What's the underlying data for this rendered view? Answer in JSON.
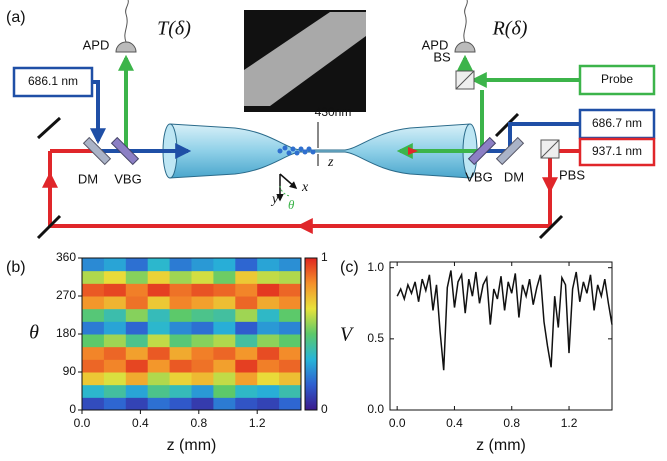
{
  "diagram": {
    "label": "(a)",
    "apd_left": "APD",
    "transmission": "T(δ)",
    "apd_right": "APD",
    "reflection": "R(δ)",
    "laser_left": "686.1 nm",
    "probe": "Probe",
    "laser_right_blue": "686.7 nm",
    "laser_right_red": "937.1 nm",
    "bs": "BS",
    "dm_left": "DM",
    "vbg_left": "VBG",
    "vbg_right": "VBG",
    "dm_right": "DM",
    "pbs": "PBS",
    "diameter": "430nm",
    "axis_z": "z",
    "axis_y": "y",
    "axis_x": "x",
    "axis_theta": "θ"
  },
  "chart_data": [
    {
      "type": "heatmap",
      "label": "(b)",
      "ylabel": "θ",
      "xlabel": "z (mm)",
      "xbins": [
        0,
        0.15,
        0.3,
        0.45,
        0.6,
        0.75,
        0.9,
        1.05,
        1.2,
        1.35,
        1.5
      ],
      "ybins": [
        0,
        30,
        60,
        90,
        120,
        150,
        180,
        210,
        240,
        270,
        300,
        330,
        360
      ],
      "values": [
        [
          0.12,
          0.18,
          0.1,
          0.2,
          0.15,
          0.08,
          0.22,
          0.14,
          0.1,
          0.18
        ],
        [
          0.35,
          0.42,
          0.3,
          0.45,
          0.38,
          0.28,
          0.5,
          0.36,
          0.32,
          0.4
        ],
        [
          0.72,
          0.65,
          0.78,
          0.6,
          0.7,
          0.75,
          0.62,
          0.8,
          0.68,
          0.74
        ],
        [
          0.9,
          0.85,
          0.95,
          0.82,
          0.92,
          0.88,
          0.8,
          0.96,
          0.86,
          0.9
        ],
        [
          0.85,
          0.9,
          0.8,
          0.92,
          0.78,
          0.86,
          0.9,
          0.82,
          0.94,
          0.84
        ],
        [
          0.5,
          0.58,
          0.45,
          0.62,
          0.48,
          0.55,
          0.6,
          0.42,
          0.56,
          0.5
        ],
        [
          0.22,
          0.3,
          0.18,
          0.35,
          0.25,
          0.2,
          0.32,
          0.16,
          0.28,
          0.24
        ],
        [
          0.48,
          0.4,
          0.55,
          0.38,
          0.5,
          0.45,
          0.42,
          0.58,
          0.36,
          0.5
        ],
        [
          0.82,
          0.76,
          0.88,
          0.72,
          0.85,
          0.8,
          0.74,
          0.9,
          0.78,
          0.84
        ],
        [
          0.92,
          0.95,
          0.86,
          0.96,
          0.88,
          0.93,
          0.9,
          0.85,
          0.97,
          0.9
        ],
        [
          0.6,
          0.68,
          0.55,
          0.7,
          0.58,
          0.64,
          0.52,
          0.72,
          0.62,
          0.6
        ],
        [
          0.25,
          0.3,
          0.2,
          0.35,
          0.22,
          0.28,
          0.32,
          0.18,
          0.3,
          0.26
        ]
      ],
      "xlim": [
        0,
        1.5
      ],
      "ylim": [
        0,
        360
      ],
      "xticks": [
        {
          "value": 0,
          "label": "0.0"
        },
        0.4,
        0.8,
        1.2
      ],
      "yticks": [
        0,
        90,
        180,
        270,
        360
      ],
      "clim": [
        0,
        1
      ],
      "cticks": [
        0,
        1
      ],
      "colormap": [
        "#3a1a8c",
        "#2f5fd0",
        "#27b5d8",
        "#5cc96a",
        "#e8e23a",
        "#f4902a",
        "#e0261f"
      ]
    },
    {
      "type": "line",
      "label": "(c)",
      "ylabel": "V",
      "xlabel": "z (mm)",
      "color": "#111111",
      "x": [
        0,
        0.025,
        0.05,
        0.075,
        0.1,
        0.125,
        0.15,
        0.175,
        0.2,
        0.225,
        0.25,
        0.275,
        0.3,
        0.325,
        0.35,
        0.375,
        0.4,
        0.425,
        0.45,
        0.475,
        0.5,
        0.525,
        0.55,
        0.575,
        0.6,
        0.625,
        0.65,
        0.675,
        0.7,
        0.725,
        0.75,
        0.775,
        0.8,
        0.825,
        0.85,
        0.875,
        0.9,
        0.925,
        0.95,
        0.975,
        1,
        1.025,
        1.05,
        1.075,
        1.1,
        1.125,
        1.15,
        1.175,
        1.2,
        1.225,
        1.25,
        1.275,
        1.3,
        1.325,
        1.35,
        1.375,
        1.4,
        1.425,
        1.45,
        1.475,
        1.5
      ],
      "values": [
        0.8,
        0.85,
        0.78,
        0.88,
        0.82,
        0.9,
        0.76,
        0.92,
        0.84,
        0.95,
        0.7,
        0.88,
        0.55,
        0.28,
        0.86,
        0.98,
        0.72,
        0.9,
        0.95,
        0.68,
        0.92,
        0.8,
        0.97,
        0.75,
        0.88,
        0.93,
        0.6,
        0.85,
        0.78,
        0.94,
        0.7,
        0.9,
        0.82,
        0.96,
        0.65,
        0.88,
        0.8,
        0.92,
        0.74,
        0.86,
        0.95,
        0.62,
        0.45,
        0.3,
        0.8,
        0.58,
        0.93,
        0.88,
        0.4,
        0.85,
        0.97,
        0.76,
        0.9,
        0.82,
        0.95,
        0.7,
        0.88,
        0.8,
        0.92,
        0.75,
        0.6
      ],
      "xlim": [
        -0.05,
        1.5
      ],
      "ylim": [
        0,
        1.04
      ],
      "xticks": [
        {
          "value": 0,
          "label": "0.0"
        },
        0.4,
        0.8,
        1.2
      ],
      "yticks": [
        {
          "value": 0,
          "label": "0.0"
        },
        0.5,
        {
          "value": 1,
          "label": "1.0"
        }
      ]
    }
  ]
}
